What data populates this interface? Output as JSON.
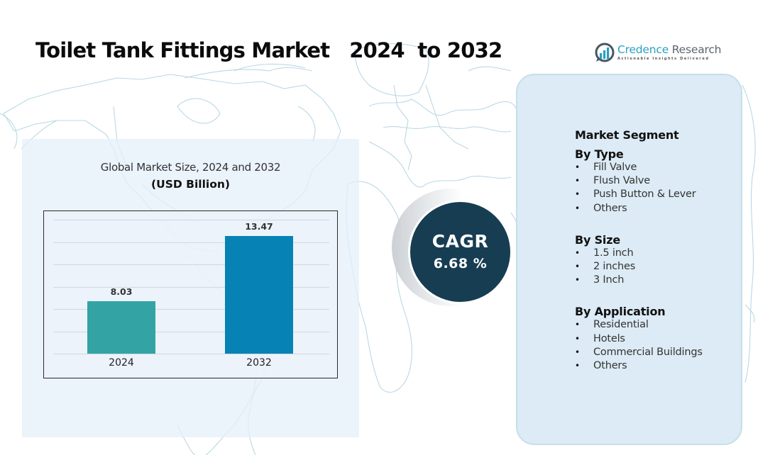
{
  "header": {
    "title": "Toilet Tank Fittings Market   2024  to 2032"
  },
  "logo": {
    "name_part1": "Credence",
    "name_part2": " Research",
    "tagline": "Actionable Insights Delivered",
    "icon": "bar-chart-circle-icon",
    "colors": {
      "primary": "#2a9fc4",
      "secondary": "#5a6470"
    }
  },
  "chart": {
    "title": "Global Market Size, 2024 and 2032",
    "subtitle": "(USD Billion)"
  },
  "chart_data": {
    "type": "bar",
    "title": "Global Market Size, 2024 and 2032",
    "subtitle": "(USD Billion)",
    "categories": [
      "2024",
      "2032"
    ],
    "values": [
      8.03,
      13.47
    ],
    "value_labels": [
      "8.03",
      "13.47"
    ],
    "colors": [
      "#33a3a4",
      "#0683b4"
    ],
    "xlabel": "",
    "ylabel": "USD Billion",
    "ylim": [
      0,
      15.5
    ],
    "grid": true,
    "legend": null
  },
  "cagr": {
    "label": "CAGR",
    "value": "6.68 %",
    "color": "#173d52"
  },
  "segments": {
    "heading": "Market Segment",
    "groups": [
      {
        "title": "By Type",
        "items": [
          "Fill Valve",
          "Flush Valve",
          "Push Button & Lever",
          "Others"
        ]
      },
      {
        "title": "By Size",
        "items": [
          "1.5 inch",
          "2 inches",
          "3 Inch"
        ]
      },
      {
        "title": "By Application",
        "items": [
          "Residential",
          "Hotels",
          "Commercial Buildings",
          "Others"
        ]
      }
    ],
    "bullet": "•"
  }
}
